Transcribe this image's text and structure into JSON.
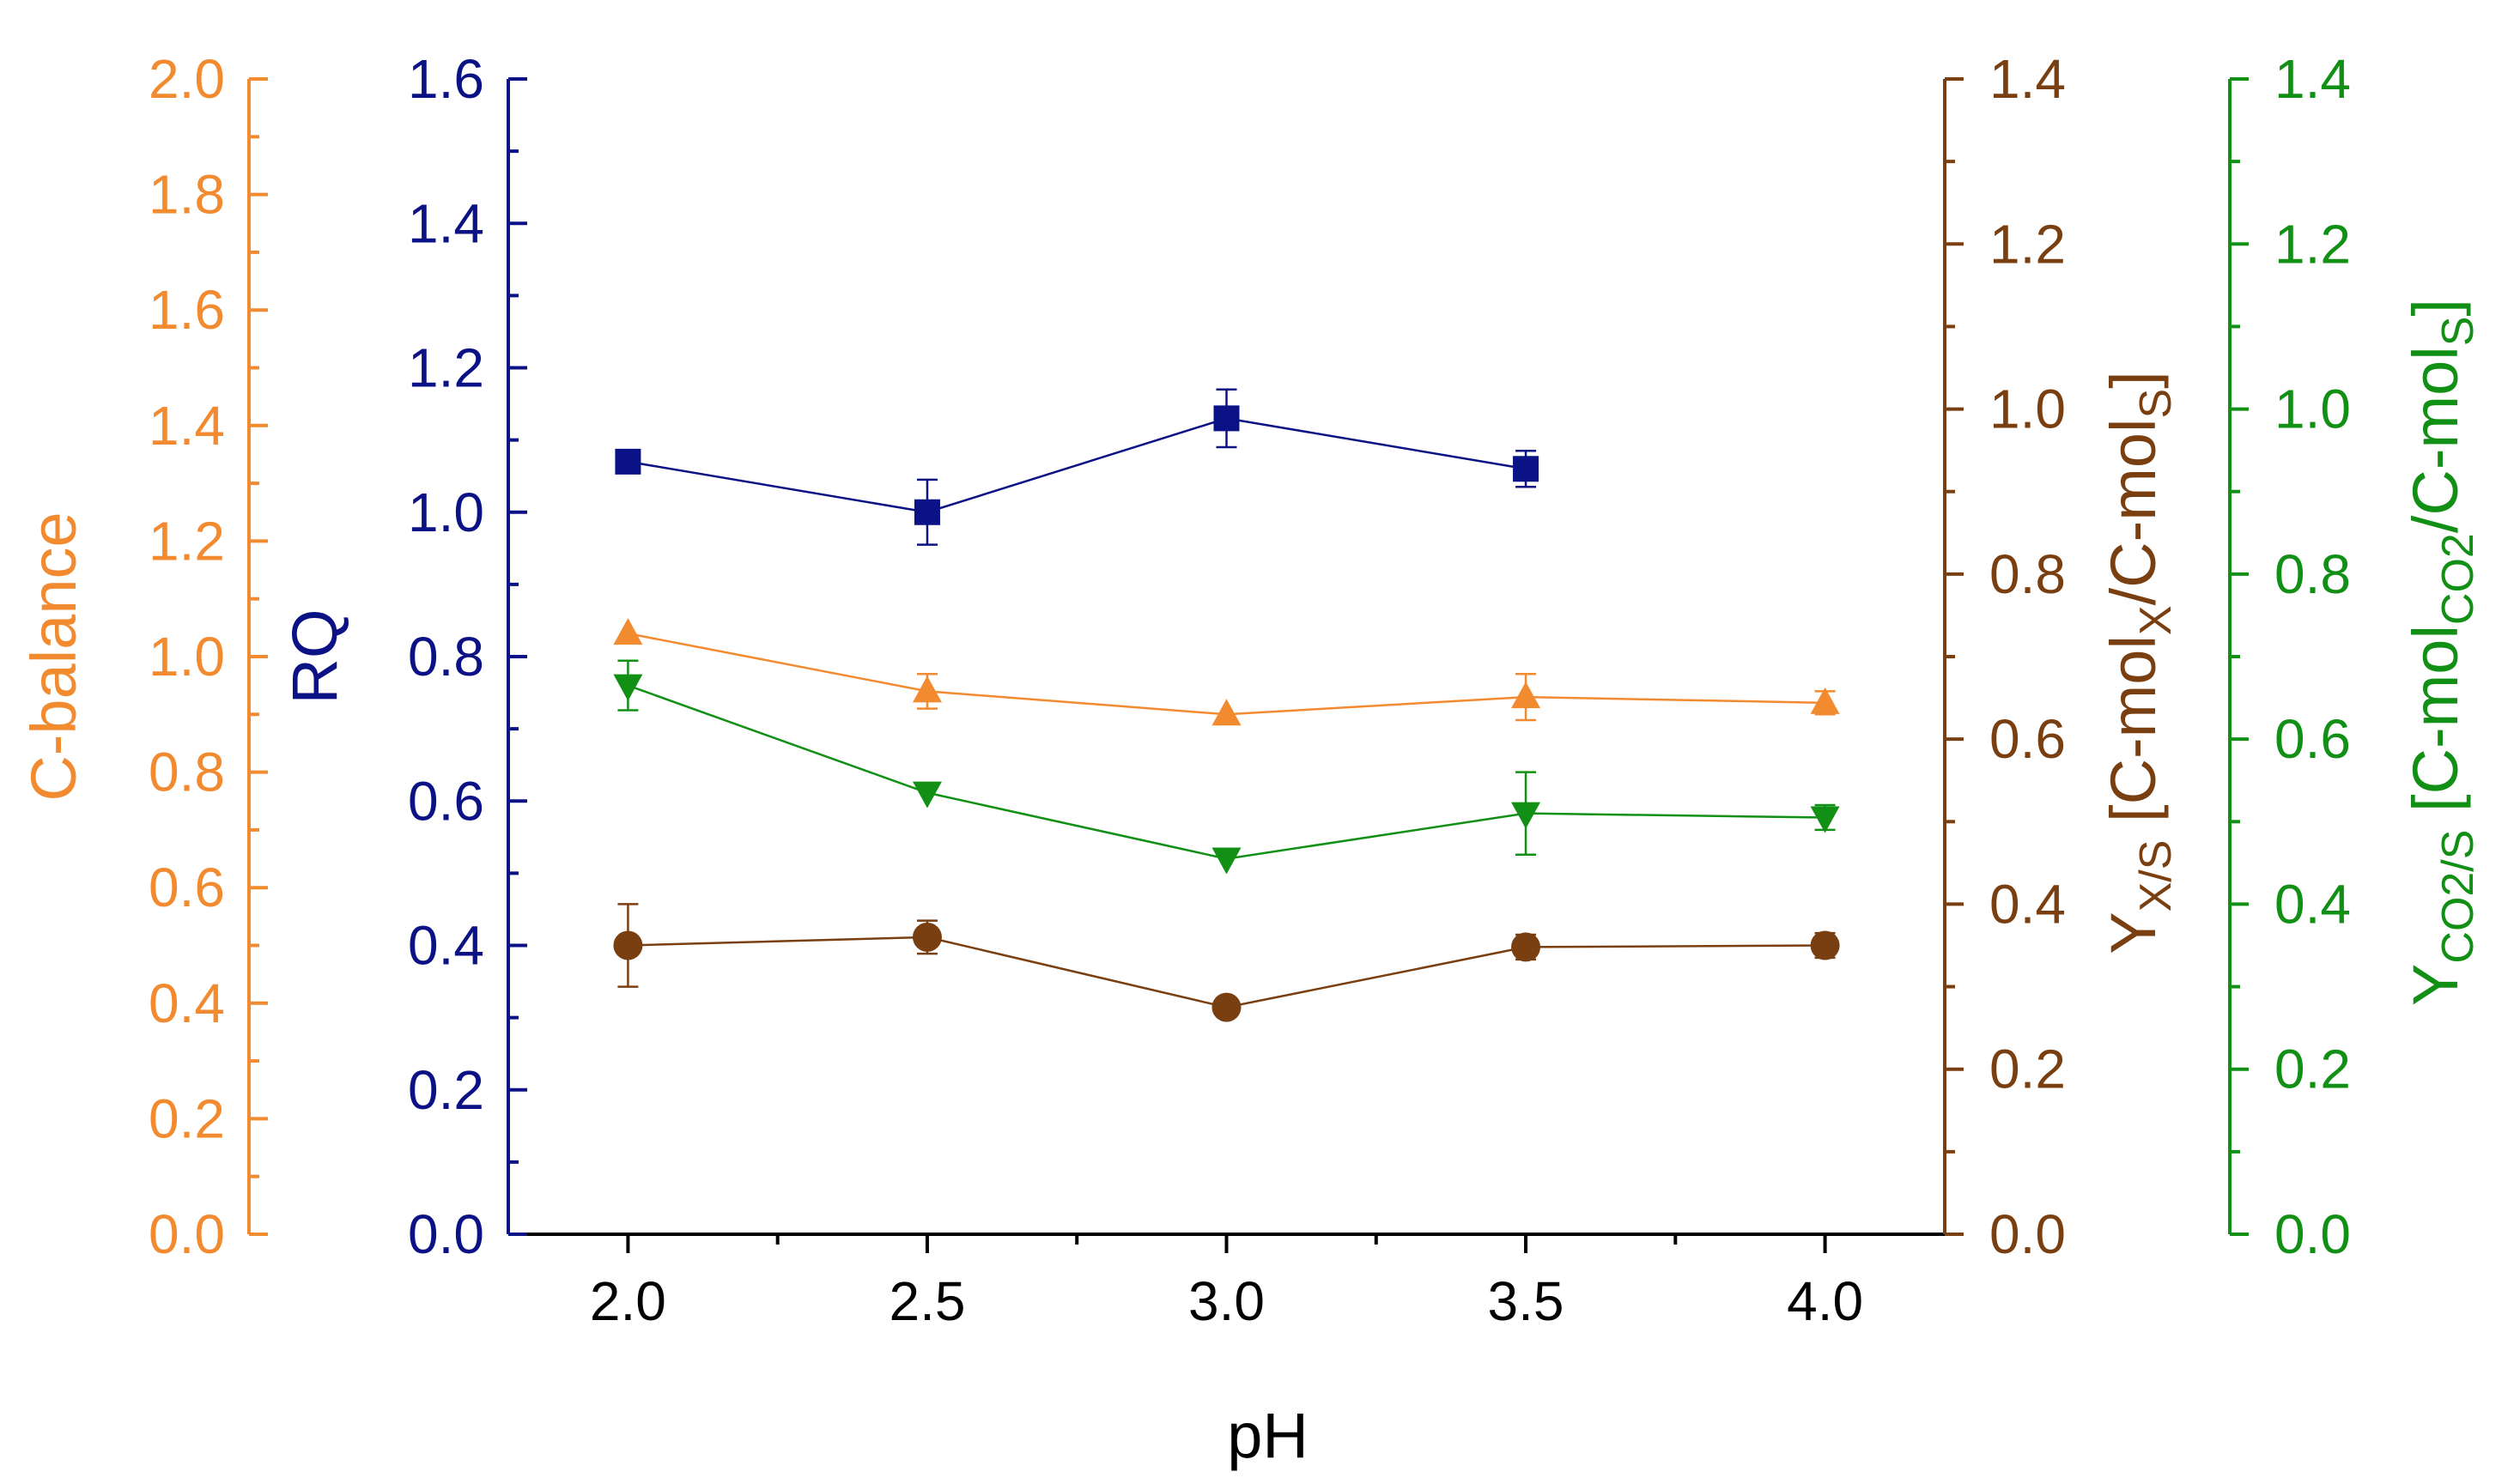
{
  "chart_data": {
    "type": "scatter",
    "x": [
      2.0,
      2.5,
      3.0,
      3.5,
      4.0
    ],
    "xlabel": "pH",
    "xlim": [
      1.8,
      4.2
    ],
    "xticks": [
      "2.0",
      "2.5",
      "3.0",
      "3.5",
      "4.0"
    ],
    "colors": {
      "rq": "#0b1285",
      "cbalance": "#f28a30",
      "yxs": "#7a3f10",
      "yco2": "#119015"
    },
    "axes": {
      "rq": {
        "label": "RQ",
        "ylim": [
          0,
          1.6
        ],
        "position": "left-inner",
        "ticks": [
          "0.0",
          "0.2",
          "0.4",
          "0.6",
          "0.8",
          "1.0",
          "1.2",
          "1.4",
          "1.6"
        ]
      },
      "cbalance": {
        "label": "C-balance",
        "ylim": [
          0,
          2.0
        ],
        "position": "left-outer",
        "ticks": [
          "0.0",
          "0.2",
          "0.4",
          "0.6",
          "0.8",
          "1.0",
          "1.2",
          "1.4",
          "1.6",
          "1.8",
          "2.0"
        ]
      },
      "yxs": {
        "label_main": "Y",
        "label_sub": "X/S",
        "label_rest_1": " [C-mol",
        "label_sub2": "X",
        "label_rest_2": "/C-mol",
        "label_sub3": "S",
        "label_end": "]",
        "ylim": [
          0,
          1.4
        ],
        "position": "right-inner",
        "ticks": [
          "0.0",
          "0.2",
          "0.4",
          "0.6",
          "0.8",
          "1.0",
          "1.2",
          "1.4"
        ]
      },
      "yco2": {
        "label_main": "Y",
        "label_sub": "CO2/S",
        "label_rest_1": " [C-mol",
        "label_sub2": "CO2",
        "label_rest_2": "/C-mol",
        "label_sub3": "S",
        "label_end": "]",
        "ylim": [
          0,
          1.4
        ],
        "position": "right-outer",
        "ticks": [
          "0.0",
          "0.2",
          "0.4",
          "0.6",
          "0.8",
          "1.0",
          "1.2",
          "1.4"
        ]
      }
    },
    "series": [
      {
        "name": "RQ",
        "axis": "rq",
        "marker": "square",
        "x": [
          2.0,
          2.5,
          3.0,
          3.5
        ],
        "values": [
          1.07,
          1.0,
          1.13,
          1.06
        ],
        "errors": [
          0.0,
          0.045,
          0.04,
          0.025
        ]
      },
      {
        "name": "C-balance",
        "axis": "cbalance",
        "marker": "triangle-up",
        "x": [
          2.0,
          2.5,
          3.0,
          3.5,
          4.0
        ],
        "values": [
          1.04,
          0.94,
          0.9,
          0.93,
          0.92
        ],
        "errors": [
          0.0,
          0.03,
          0.0,
          0.04,
          0.02
        ]
      },
      {
        "name": "Y X/S",
        "axis": "yxs",
        "marker": "circle",
        "x": [
          2.0,
          2.5,
          3.0,
          3.5,
          4.0
        ],
        "values": [
          0.35,
          0.36,
          0.275,
          0.348,
          0.35
        ],
        "errors": [
          0.05,
          0.02,
          0.01,
          0.015,
          0.015
        ]
      },
      {
        "name": "Y CO2/S",
        "axis": "yco2",
        "marker": "triangle-down",
        "x": [
          2.0,
          2.5,
          3.0,
          3.5,
          4.0
        ],
        "values": [
          0.665,
          0.535,
          0.455,
          0.51,
          0.505
        ],
        "errors": [
          0.03,
          0.0,
          0.0,
          0.05,
          0.015
        ]
      }
    ]
  }
}
